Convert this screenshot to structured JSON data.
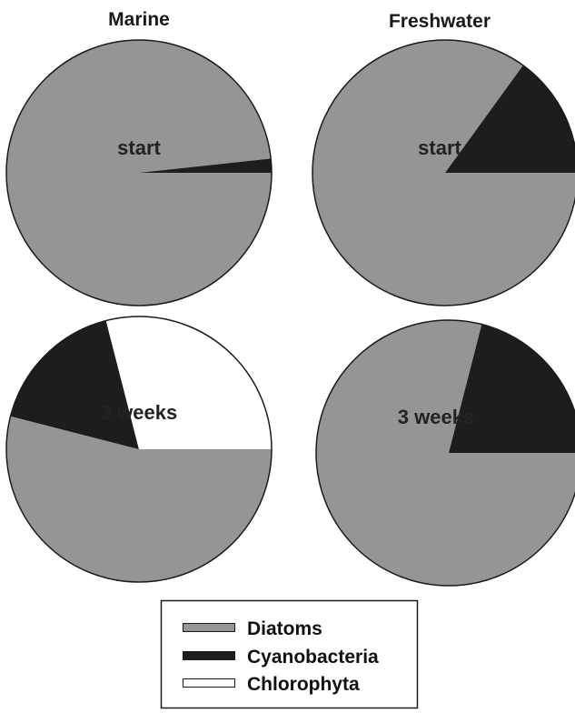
{
  "colors": {
    "Diatoms": "#959595",
    "Cyanobacteria": "#1d1d1d",
    "Chlorophyta": "#ffffff",
    "outline": "#1a1a1a"
  },
  "chart_data": [
    {
      "type": "pie",
      "title": "Marine",
      "label": "start",
      "categories": [
        "Diatoms",
        "Cyanobacteria",
        "Chlorophyta"
      ],
      "values": [
        98.3,
        1.7,
        0
      ]
    },
    {
      "type": "pie",
      "title": "Freshwater",
      "label": "start",
      "categories": [
        "Diatoms",
        "Cyanobacteria",
        "Chlorophyta"
      ],
      "values": [
        85,
        15,
        0
      ]
    },
    {
      "type": "pie",
      "title": "",
      "label": "3 weeks",
      "categories": [
        "Diatoms",
        "Cyanobacteria",
        "Chlorophyta"
      ],
      "values": [
        54,
        17,
        29
      ]
    },
    {
      "type": "pie",
      "title": "",
      "label": "3 weeks",
      "categories": [
        "Diatoms",
        "Cyanobacteria",
        "Chlorophyta"
      ],
      "values": [
        79,
        21,
        0
      ]
    }
  ],
  "legend": {
    "items": [
      "Diatoms",
      "Cyanobacteria",
      "Chlorophyta"
    ]
  }
}
